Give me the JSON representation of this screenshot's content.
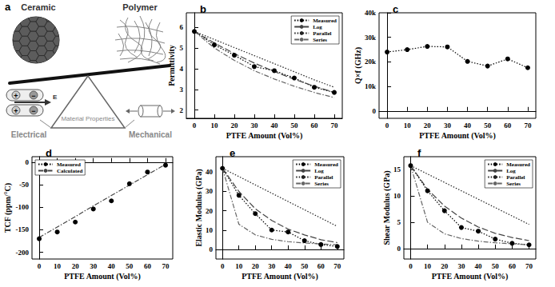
{
  "diagram": {
    "title": "a",
    "left_object": "Ceramic",
    "right_object": "Polymer",
    "center": "Material Properties",
    "left_property": "Electrical",
    "right_property": "Mechanical",
    "field_label": "E",
    "charge_signs": [
      "+",
      "−"
    ]
  },
  "chart_data": [
    {
      "type": "line",
      "title": "b",
      "x_label": "PTFE Amount (Vol%)",
      "y_label": "Permittivity",
      "x": [
        0,
        10,
        20,
        30,
        40,
        50,
        60,
        70
      ],
      "xlim": [
        -4,
        74
      ],
      "xticks": [
        0,
        10,
        20,
        30,
        40,
        50,
        60,
        70
      ],
      "ylim": [
        1.6,
        6.7
      ],
      "yticks": [
        2,
        3,
        4,
        5,
        6
      ],
      "grid": false,
      "legend": "upper right",
      "series": [
        {
          "name": "Measured",
          "color": "#000000",
          "marker": "circle",
          "line_style": "dotted",
          "values": [
            5.8,
            5.15,
            4.65,
            4.1,
            3.9,
            3.55,
            3.1,
            2.85
          ]
        },
        {
          "name": "Log",
          "color": "#444444",
          "marker": "none",
          "line_style": "longdash",
          "values": [
            5.8,
            5.24,
            4.73,
            4.27,
            3.86,
            3.49,
            3.15,
            2.85
          ]
        },
        {
          "name": "Parallel",
          "color": "#222222",
          "marker": "none",
          "line_style": "dotted",
          "values": [
            5.8,
            5.41,
            5.02,
            4.63,
            4.24,
            3.85,
            3.46,
            3.1
          ]
        },
        {
          "name": "Series",
          "color": "#666666",
          "marker": "none",
          "line_style": "dashdot",
          "values": [
            5.8,
            5.0,
            4.4,
            3.9,
            3.5,
            3.15,
            2.85,
            2.6
          ]
        }
      ]
    },
    {
      "type": "line",
      "title": "c",
      "x_label": "PTFE Amount (Vol%)",
      "y_label": "Q×f (GHz)",
      "x": [
        0,
        10,
        20,
        30,
        40,
        50,
        60,
        70
      ],
      "xlim": [
        -4,
        74
      ],
      "xticks": [
        0,
        10,
        20,
        30,
        40,
        50,
        60,
        70
      ],
      "ylim": [
        -3000,
        40000
      ],
      "yticks": [
        0,
        {
          "value": 10000,
          "label": "10k"
        },
        {
          "value": 20000,
          "label": "20k"
        },
        {
          "value": 30000,
          "label": "30k"
        },
        {
          "value": 40000,
          "label": "40k"
        }
      ],
      "grid": false,
      "series": [
        {
          "color": "#000000",
          "marker": "circle",
          "line_style": "dotted",
          "values": [
            24000,
            25000,
            26300,
            26100,
            20200,
            18300,
            21200,
            17600
          ]
        }
      ]
    },
    {
      "type": "line",
      "title": "d",
      "x_label": "PTFE Amount (Vol%)",
      "y_label": "TCF (ppm/°C)",
      "x": [
        0,
        10,
        20,
        30,
        40,
        50,
        60,
        70
      ],
      "xlim": [
        -4,
        74
      ],
      "xticks": [
        0,
        10,
        20,
        30,
        40,
        50,
        60,
        70
      ],
      "ylim": [
        -215,
        12
      ],
      "yticks": [
        -200,
        -150,
        -100,
        -50,
        0
      ],
      "grid": false,
      "legend": "upper left",
      "series": [
        {
          "name": "Measured",
          "color": "#000000",
          "marker": "circle",
          "line_style": "none",
          "values": [
            -170,
            -155,
            -133,
            -104,
            -86,
            -48,
            -22,
            -7
          ]
        },
        {
          "name": "Calculated",
          "color": "#444444",
          "marker": "none",
          "line_style": "dashdot",
          "values": [
            -167,
            -144,
            -121,
            -97,
            -74,
            -51,
            -28,
            -5
          ]
        }
      ]
    },
    {
      "type": "line",
      "title": "e",
      "x_label": "PTFE Amount (Vol%)",
      "y_label": "Elastic Modulus (GPa)",
      "x": [
        0,
        10,
        20,
        30,
        40,
        50,
        60,
        70
      ],
      "xlim": [
        -4,
        74
      ],
      "xticks": [
        0,
        10,
        20,
        30,
        40,
        50,
        60,
        70
      ],
      "ylim": [
        -5,
        48
      ],
      "yticks": [
        0,
        10,
        20,
        30,
        40
      ],
      "grid": false,
      "legend": "upper right",
      "series": [
        {
          "name": "Measured",
          "color": "#000000",
          "marker": "circle",
          "line_style": "dotted",
          "values": [
            42,
            28,
            18.5,
            10,
            9,
            4.5,
            2.5,
            1.5
          ]
        },
        {
          "name": "Log",
          "color": "#444444",
          "marker": "none",
          "line_style": "longdash",
          "values": [
            42,
            30,
            21,
            15,
            10.5,
            7.5,
            5,
            3.5
          ]
        },
        {
          "name": "Parallel",
          "color": "#222222",
          "marker": "none",
          "line_style": "dotted",
          "values": [
            42,
            37.7,
            33.4,
            29.1,
            24.8,
            20.5,
            16.2,
            11.9
          ]
        },
        {
          "name": "Series",
          "color": "#666666",
          "marker": "none",
          "line_style": "dashdot",
          "values": [
            42,
            13,
            7.5,
            5.2,
            4,
            3.3,
            2.8,
            2.4
          ]
        }
      ]
    },
    {
      "type": "line",
      "title": "f",
      "x_label": "PTFE Amount (Vol%)",
      "y_label": "Shear Modulus (GPa)",
      "x": [
        0,
        10,
        20,
        30,
        40,
        50,
        60,
        70
      ],
      "xlim": [
        -4,
        74
      ],
      "xticks": [
        0,
        10,
        20,
        30,
        40,
        50,
        60,
        70
      ],
      "ylim": [
        -2,
        17.5
      ],
      "yticks": [
        0,
        5,
        10,
        15
      ],
      "grid": false,
      "legend": "upper right",
      "series": [
        {
          "name": "Measured",
          "color": "#000000",
          "marker": "circle",
          "line_style": "dotted",
          "values": [
            15.8,
            11,
            7.2,
            4,
            3.3,
            1.8,
            1.0,
            0.7
          ]
        },
        {
          "name": "Log",
          "color": "#444444",
          "marker": "none",
          "line_style": "longdash",
          "values": [
            15.8,
            11.3,
            8.1,
            5.8,
            4.1,
            2.9,
            2.1,
            1.5
          ]
        },
        {
          "name": "Parallel",
          "color": "#222222",
          "marker": "none",
          "line_style": "dotted",
          "values": [
            15.8,
            14.2,
            12.6,
            11.0,
            9.4,
            7.8,
            6.2,
            4.6
          ]
        },
        {
          "name": "Series",
          "color": "#666666",
          "marker": "none",
          "line_style": "dashdot",
          "values": [
            15.8,
            5,
            2.8,
            1.9,
            1.4,
            1.1,
            0.9,
            0.7
          ]
        }
      ]
    }
  ]
}
